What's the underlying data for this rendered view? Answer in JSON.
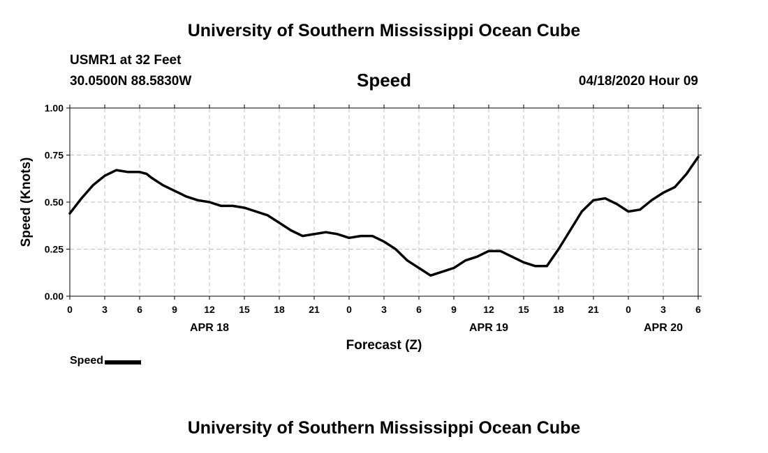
{
  "header": {
    "title": "University of Southern Mississippi Ocean Cube",
    "station": "USMR1 at 32 Feet",
    "coordinates": "30.0500N 88.5830W",
    "variable": "Speed",
    "datetime": "04/18/2020 Hour 09"
  },
  "footer": {
    "title": "University of Southern Mississippi Ocean Cube"
  },
  "legend": {
    "label": "Speed",
    "color": "#000000"
  },
  "chart_data": {
    "type": "line",
    "title": "Speed",
    "xlabel": "Forecast (Z)",
    "ylabel": "Speed (Knots)",
    "xlim": [
      0,
      54
    ],
    "ylim": [
      0,
      1
    ],
    "grid": true,
    "x_ticks": [
      0,
      3,
      6,
      9,
      12,
      15,
      18,
      21,
      24,
      27,
      30,
      33,
      36,
      39,
      42,
      45,
      48,
      51,
      54
    ],
    "x_tick_labels": [
      "0",
      "3",
      "6",
      "9",
      "12",
      "15",
      "18",
      "21",
      "0",
      "3",
      "6",
      "9",
      "12",
      "15",
      "18",
      "21",
      "0",
      "3",
      "6"
    ],
    "y_ticks": [
      0,
      0.25,
      0.5,
      0.75,
      1.0
    ],
    "y_tick_labels": [
      "0.00",
      "0.25",
      "0.50",
      "0.75",
      "1.00"
    ],
    "date_labels": [
      {
        "x": 12,
        "label": "APR 18"
      },
      {
        "x": 36,
        "label": "APR 19"
      },
      {
        "x": 51,
        "label": "APR 20"
      }
    ],
    "series": [
      {
        "name": "Speed",
        "color": "#000000",
        "x": [
          0,
          1,
          2,
          3,
          4,
          5,
          6,
          6.6,
          7,
          8,
          9,
          10,
          11,
          12,
          13,
          14,
          15,
          16,
          17,
          18,
          19,
          20,
          21,
          22,
          23,
          24,
          25,
          26,
          27,
          28,
          29,
          30,
          31,
          32,
          33,
          34,
          35,
          36,
          37,
          38,
          39,
          40,
          41,
          42,
          43,
          44,
          45,
          46,
          47,
          48,
          49,
          50,
          51,
          52,
          53,
          54
        ],
        "values": [
          0.44,
          0.52,
          0.59,
          0.64,
          0.67,
          0.66,
          0.66,
          0.65,
          0.63,
          0.59,
          0.56,
          0.53,
          0.51,
          0.5,
          0.48,
          0.48,
          0.47,
          0.45,
          0.43,
          0.39,
          0.35,
          0.32,
          0.33,
          0.34,
          0.33,
          0.31,
          0.32,
          0.32,
          0.29,
          0.25,
          0.19,
          0.15,
          0.11,
          0.13,
          0.15,
          0.19,
          0.21,
          0.24,
          0.24,
          0.21,
          0.18,
          0.16,
          0.16,
          0.25,
          0.35,
          0.45,
          0.51,
          0.52,
          0.49,
          0.45,
          0.46,
          0.51,
          0.55,
          0.58,
          0.65,
          0.74
        ]
      }
    ]
  }
}
